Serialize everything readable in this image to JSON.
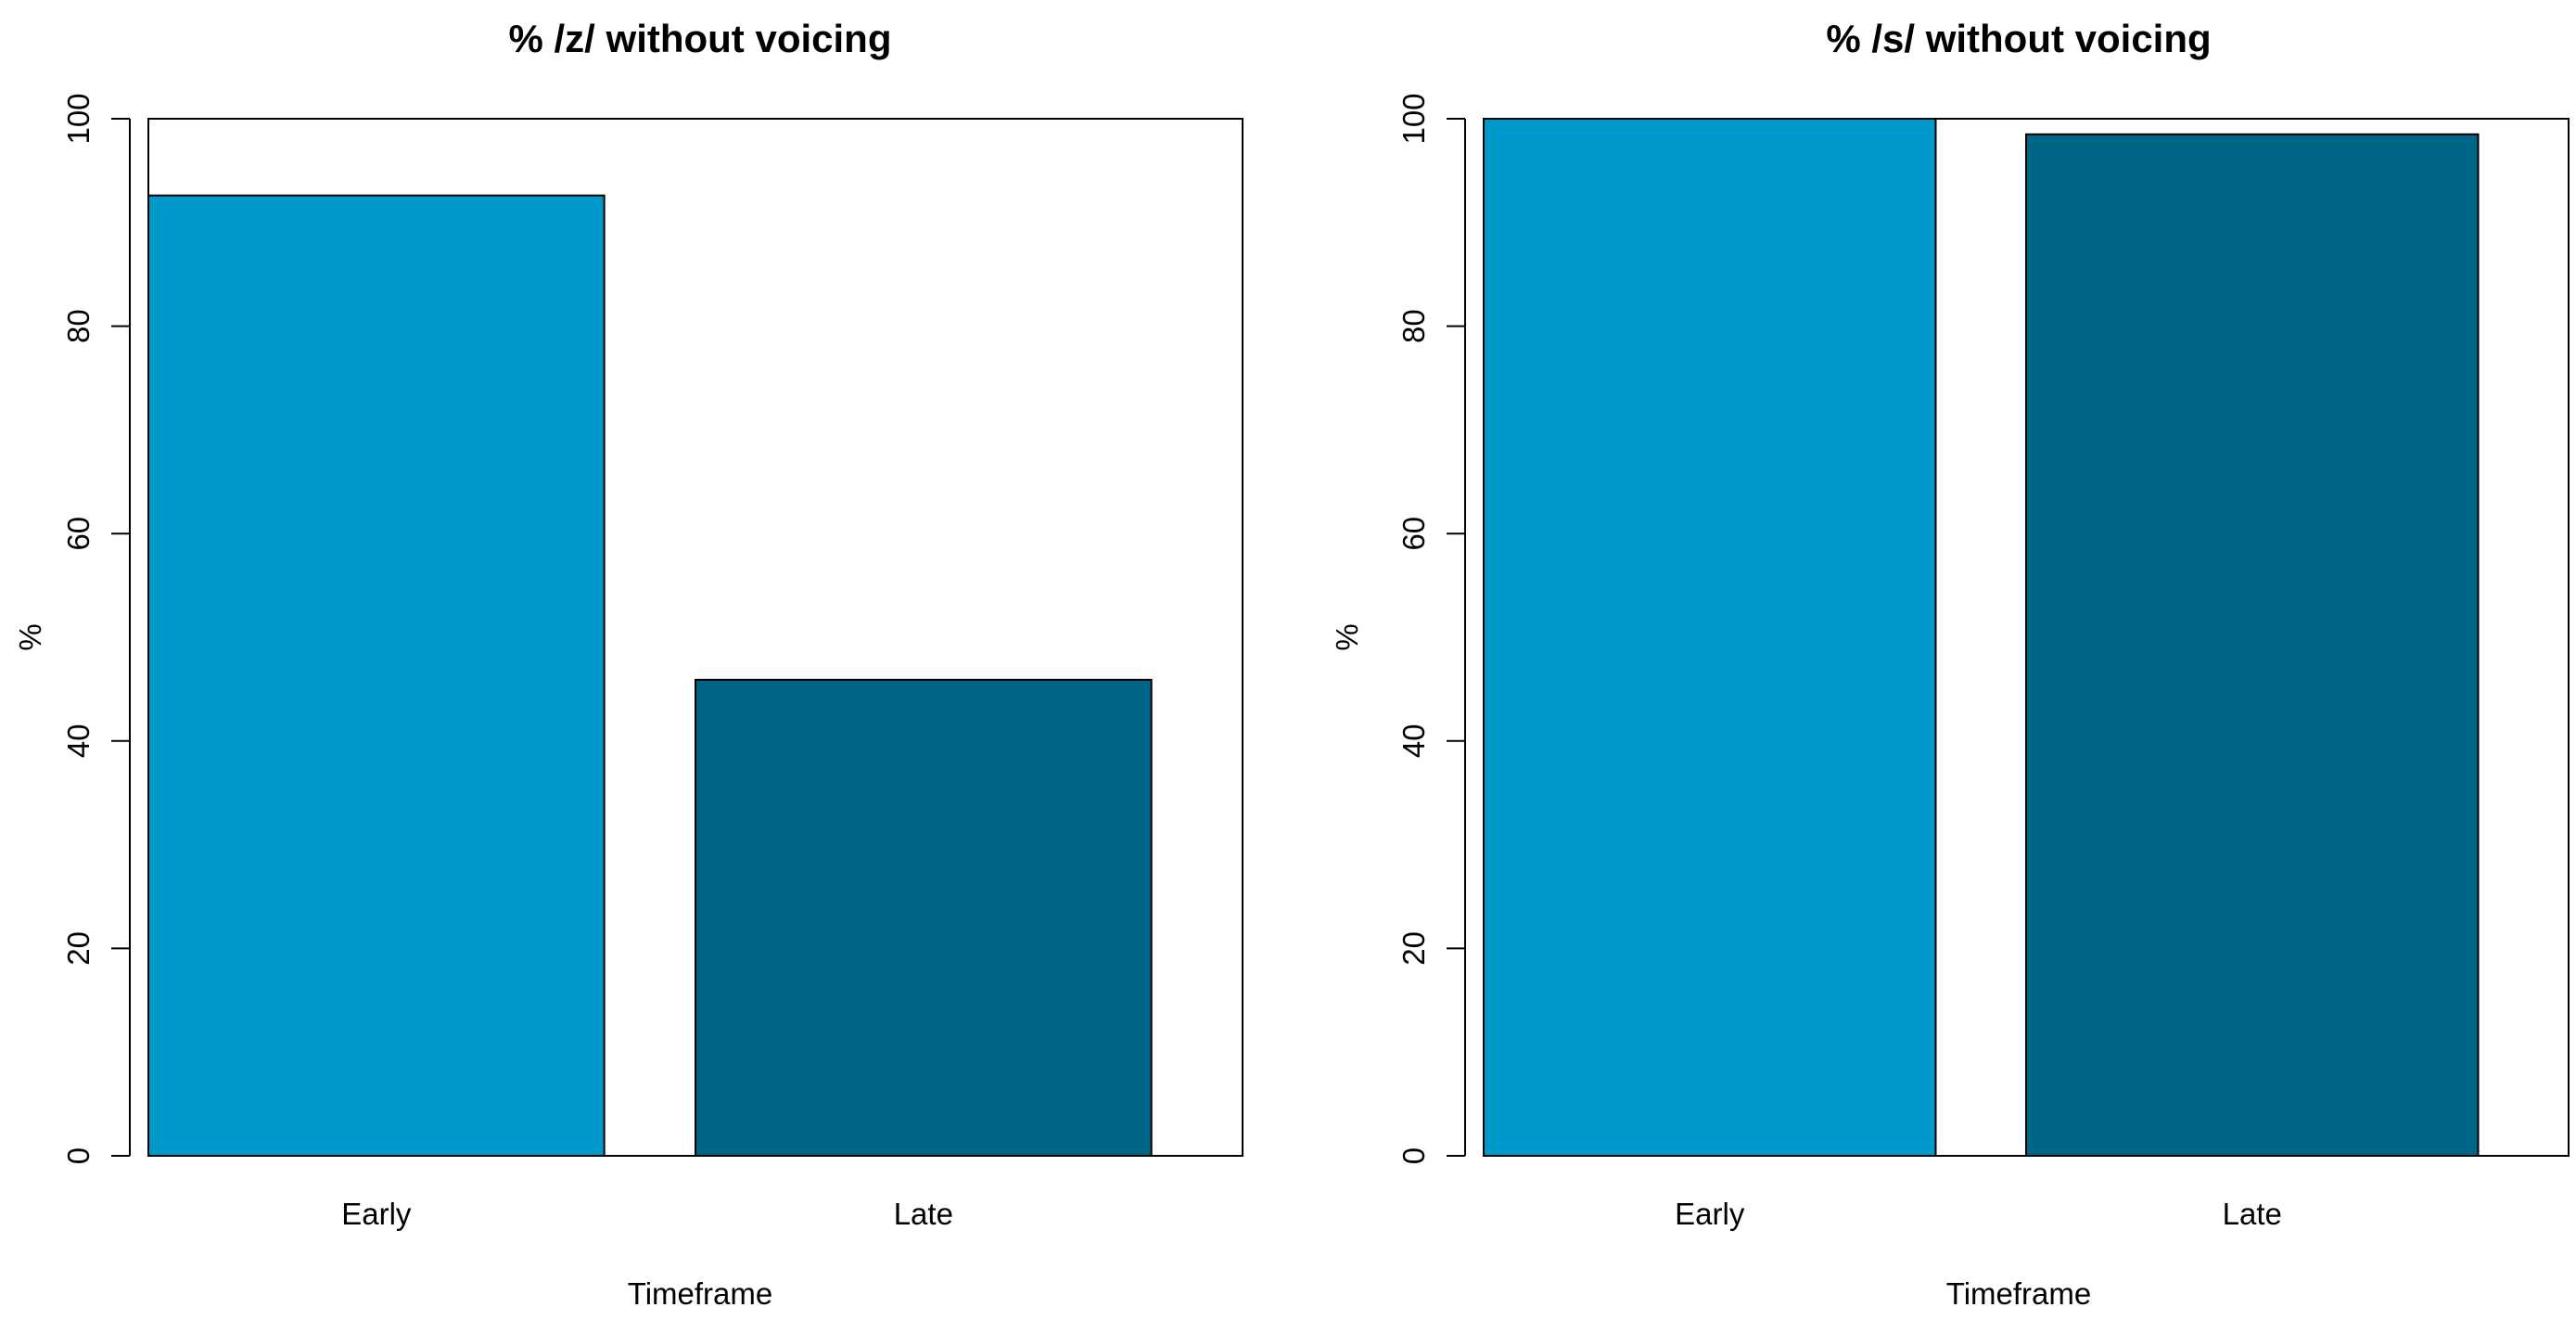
{
  "chart_data": [
    {
      "type": "bar",
      "title": "% /z/ without voicing",
      "xlabel": "Timeframe",
      "ylabel": "%",
      "categories": [
        "Early",
        "Late"
      ],
      "values": [
        92.6,
        45.9
      ],
      "colors": [
        "#0099cc",
        "#006688"
      ],
      "ylim": [
        0,
        100
      ],
      "yticks": [
        0,
        20,
        40,
        60,
        80,
        100
      ],
      "grid": false
    },
    {
      "type": "bar",
      "title": "% /s/ without voicing",
      "xlabel": "Timeframe",
      "ylabel": "%",
      "categories": [
        "Early",
        "Late"
      ],
      "values": [
        100,
        98.5
      ],
      "colors": [
        "#0099cc",
        "#006688"
      ],
      "ylim": [
        0,
        100
      ],
      "yticks": [
        0,
        20,
        40,
        60,
        80,
        100
      ],
      "grid": false
    }
  ]
}
